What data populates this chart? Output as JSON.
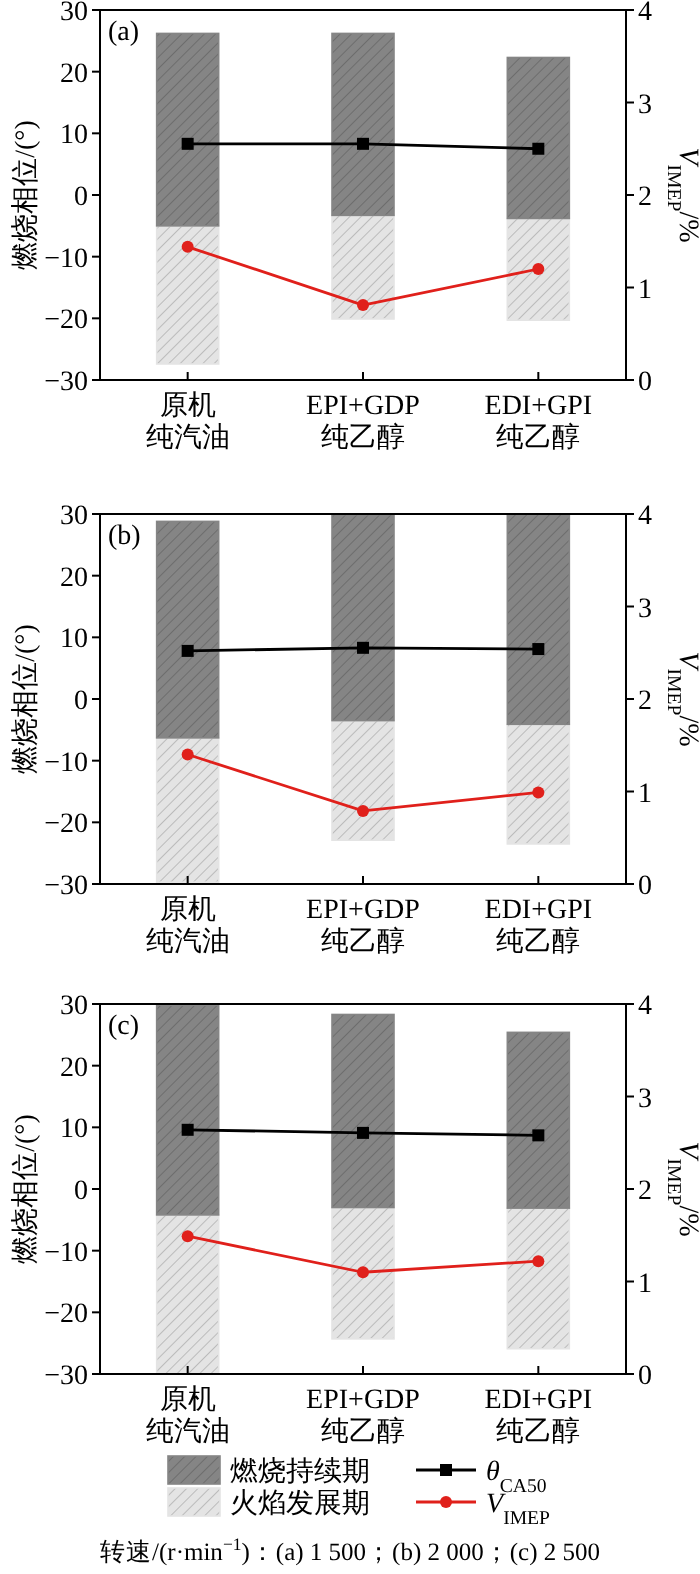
{
  "chart_data": [
    {
      "type": "bar",
      "title": "(a)",
      "categories": [
        "原机纯汽油",
        "EPI+GDP 纯乙醇",
        "EDI+GPI 纯乙醇"
      ],
      "ylabel": "燃烧相位/(°)",
      "y2label": "*V*$_{IMEP}$/%",
      "ylim": [
        -30,
        30
      ],
      "yticks": [
        -30,
        -20,
        -10,
        0,
        10,
        20,
        30
      ],
      "y2lim": [
        0,
        4
      ],
      "y2ticks": [
        0,
        1,
        2,
        3,
        4
      ],
      "series": [
        {
          "color": "#e4e4e4",
          "base": [
            -27.4,
            -20.1,
            -20.3
          ],
          "values": [
            22.4,
            16.8,
            16.5
          ]
        },
        {
          "color": "#858585",
          "base": [
            -5.0,
            -3.3,
            -3.8
          ],
          "values": [
            31.2,
            29.5,
            26.1
          ]
        },
        {
          "type": "line",
          "axis": "y",
          "color": "#000000",
          "marker": "square",
          "line_style": "solid",
          "values": [
            8.3,
            8.3,
            7.5
          ]
        },
        {
          "type": "line",
          "axis": "y2",
          "color": "#e0201b",
          "marker": "circle",
          "line_style": "solid",
          "values": [
            1.44,
            0.81,
            1.2
          ]
        }
      ]
    },
    {
      "type": "bar",
      "title": "(b)",
      "categories": [
        "原机纯汽油",
        "EPI+GDP 纯乙醇",
        "EDI+GPI 纯乙醇"
      ],
      "ylabel": "燃烧相位/(°)",
      "y2label": "*V*$_{IMEP}$/%",
      "ylim": [
        -30,
        30
      ],
      "yticks": [
        -30,
        -20,
        -10,
        0,
        10,
        20,
        30
      ],
      "y2lim": [
        0,
        4
      ],
      "y2ticks": [
        0,
        1,
        2,
        3,
        4
      ],
      "series": [
        {
          "color": "#e4e4e4",
          "base": [
            -29.7,
            -22.9,
            -23.5
          ],
          "values": [
            23.4,
            19.4,
            19.4
          ]
        },
        {
          "color": "#858585",
          "base": [
            -6.3,
            -3.5,
            -4.1
          ],
          "values": [
            35.1,
            33.4,
            34.1
          ]
        },
        {
          "type": "line",
          "axis": "y",
          "color": "#000000",
          "marker": "square",
          "line_style": "solid",
          "values": [
            7.8,
            8.3,
            8.1
          ]
        },
        {
          "type": "line",
          "axis": "y2",
          "color": "#e0201b",
          "marker": "circle",
          "line_style": "solid",
          "values": [
            1.4,
            0.79,
            0.99
          ]
        }
      ]
    },
    {
      "type": "bar",
      "title": "(c)",
      "categories": [
        "原机纯汽油",
        "EPI+GDP 纯乙醇",
        "EDI+GPI 纯乙醇"
      ],
      "ylabel": "燃烧相位/(°)",
      "y2label": "*V*$_{IMEP}$/%",
      "ylim": [
        -30,
        30
      ],
      "yticks": [
        -30,
        -20,
        -10,
        0,
        10,
        20,
        30
      ],
      "y2lim": [
        0,
        4
      ],
      "y2ticks": [
        0,
        1,
        2,
        3,
        4
      ],
      "legend": "bottom",
      "annotations": [
        "转速/(r·min$^{−1}$)：(a) 1 500；(b) 2 000；(c) 2 500"
      ],
      "series": [
        {
          "name": "火焰发展期",
          "color": "#e4e4e4",
          "base": [
            -30.0,
            -24.3,
            -25.9
          ],
          "values": [
            25.8,
            21.3,
            22.8
          ]
        },
        {
          "name": "燃烧持续期",
          "color": "#858585",
          "base": [
            -4.2,
            -3.0,
            -3.1
          ],
          "values": [
            34.0,
            31.3,
            28.5
          ]
        },
        {
          "type": "line",
          "axis": "y",
          "name": "*θ*$_{CA50}$",
          "color": "#000000",
          "marker": "square",
          "line_style": "solid",
          "values": [
            9.6,
            9.1,
            8.7
          ]
        },
        {
          "type": "line",
          "axis": "y2",
          "name": "*V*$_{IMEP}$",
          "color": "#e0201b",
          "marker": "circle",
          "line_style": "solid",
          "values": [
            1.49,
            1.1,
            1.22
          ]
        }
      ]
    }
  ]
}
